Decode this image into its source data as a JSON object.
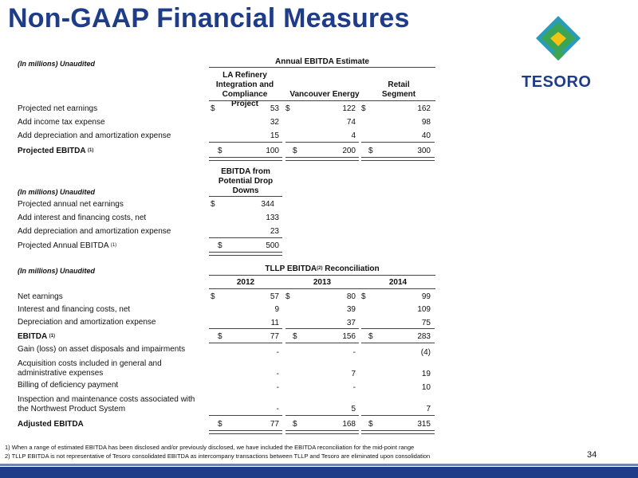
{
  "page": {
    "title": "Non-GAAP Financial Measures",
    "page_number": "34",
    "logo_text": "TESORO"
  },
  "table1": {
    "units": "(In millions) Unaudited",
    "header": "Annual EBITDA Estimate",
    "columns": [
      "LA Refinery Integration and Compliance Project",
      "Vancouver Energy",
      "Retail Segment"
    ],
    "rows": [
      {
        "label": "Projected net earnings",
        "values": [
          "53",
          "122",
          "162"
        ],
        "dollar": true
      },
      {
        "label": "Add income tax expense",
        "values": [
          "32",
          "74",
          "98"
        ],
        "dollar": false
      },
      {
        "label": "Add depreciation and amortization expense",
        "values": [
          "15",
          "4",
          "40"
        ],
        "dollar": false
      },
      {
        "label": "Projected EBITDA",
        "sup": "(1)",
        "values": [
          "100",
          "200",
          "300"
        ],
        "dollar": true
      }
    ]
  },
  "table2": {
    "units": "(In millions) Unaudited",
    "header": "EBITDA from Potential Drop Downs",
    "rows": [
      {
        "label": "Projected annual net earnings",
        "value": "344",
        "dollar": true
      },
      {
        "label": "Add interest and financing costs, net",
        "value": "133",
        "dollar": false
      },
      {
        "label": "Add depreciation and amortization expense",
        "value": "23",
        "dollar": false
      },
      {
        "label": "Projected Annual EBITDA",
        "sup": "(1)",
        "value": "500",
        "dollar": true
      }
    ]
  },
  "table3": {
    "units": "(In millions) Unaudited",
    "header": "TLLP EBITDA",
    "header_sup": "(2)",
    "header_suffix": "Reconciliation",
    "years": [
      "2012",
      "2013",
      "2014"
    ],
    "rows": [
      {
        "label": "Net earnings",
        "values": [
          "57",
          "80",
          "99"
        ],
        "dollar": true
      },
      {
        "label": "Interest and financing costs, net",
        "values": [
          "9",
          "39",
          "109"
        ]
      },
      {
        "label": "Depreciation and amortization expense",
        "values": [
          "11",
          "37",
          "75"
        ]
      },
      {
        "label": "EBITDA",
        "sup": "(1)",
        "values": [
          "77",
          "156",
          "283"
        ],
        "dollar": true
      },
      {
        "label": "Gain (loss) on asset disposals and impairments",
        "values": [
          "-",
          "-",
          "(4)"
        ]
      },
      {
        "label": "Acquisition costs included in general and",
        "label2": "administrative expenses",
        "values": [
          "-",
          "7",
          "19"
        ]
      },
      {
        "label": "Billing of deficiency payment",
        "values": [
          "-",
          "-",
          "10"
        ]
      },
      {
        "label": "Inspection and maintenance costs associated with",
        "label2": "the Northwest Product System",
        "values": [
          "-",
          "5",
          "7"
        ]
      },
      {
        "label": "Adjusted EBITDA",
        "values": [
          "77",
          "168",
          "315"
        ],
        "dollar": true
      }
    ]
  },
  "footnotes": [
    "1) When a range of estimated EBITDA has been disclosed and/or previously disclosed, we have included the EBITDA reconciliation for the mid-point range",
    "2) TLLP EBITDA is not representative of Tesoro consolidated EBITDA as intercompany transactions between TLLP and Tesoro are eliminated upon consolidation"
  ],
  "colors": {
    "title": "#1f3c88",
    "logo_green": "#3aa655",
    "logo_teal": "#2a9bb8",
    "logo_yellow": "#f2c313"
  }
}
